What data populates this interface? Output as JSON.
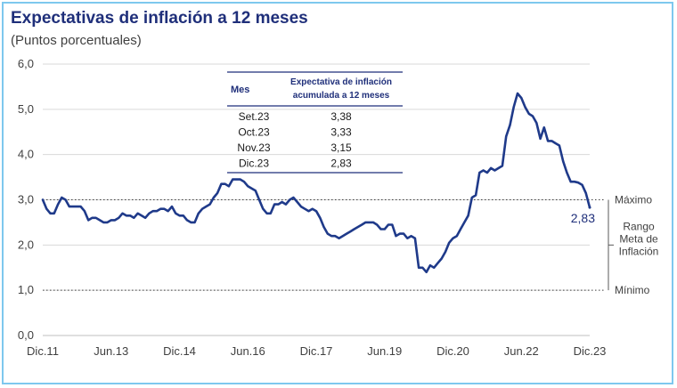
{
  "chart_data": {
    "type": "line",
    "title": "Expectativas de inflación a 12 meses",
    "subtitle": "(Puntos porcentuales)",
    "ylim": [
      0,
      6
    ],
    "yticks": [
      "0,0",
      "1,0",
      "2,0",
      "3,0",
      "4,0",
      "5,0",
      "6,0"
    ],
    "xticks": [
      "Dic.11",
      "Jun.13",
      "Dic.14",
      "Jun.16",
      "Dic.17",
      "Jun.19",
      "Dic.20",
      "Jun.22",
      "Dic.23"
    ],
    "grid": "horizontal",
    "series": [
      {
        "color": "#1f3a8a",
        "x": [
          "2011-12",
          "2012-01",
          "2012-02",
          "2012-03",
          "2012-04",
          "2012-05",
          "2012-06",
          "2012-07",
          "2012-08",
          "2012-09",
          "2012-10",
          "2012-11",
          "2012-12",
          "2013-01",
          "2013-02",
          "2013-03",
          "2013-04",
          "2013-05",
          "2013-06",
          "2013-07",
          "2013-08",
          "2013-09",
          "2013-10",
          "2013-11",
          "2013-12",
          "2014-01",
          "2014-02",
          "2014-03",
          "2014-04",
          "2014-05",
          "2014-06",
          "2014-07",
          "2014-08",
          "2014-09",
          "2014-10",
          "2014-11",
          "2014-12",
          "2015-01",
          "2015-02",
          "2015-03",
          "2015-04",
          "2015-05",
          "2015-06",
          "2015-07",
          "2015-08",
          "2015-09",
          "2015-10",
          "2015-11",
          "2015-12",
          "2016-01",
          "2016-02",
          "2016-03",
          "2016-04",
          "2016-05",
          "2016-06",
          "2016-07",
          "2016-08",
          "2016-09",
          "2016-10",
          "2016-11",
          "2016-12",
          "2017-01",
          "2017-02",
          "2017-03",
          "2017-04",
          "2017-05",
          "2017-06",
          "2017-07",
          "2017-08",
          "2017-09",
          "2017-10",
          "2017-11",
          "2017-12",
          "2018-01",
          "2018-02",
          "2018-03",
          "2018-04",
          "2018-05",
          "2018-06",
          "2018-07",
          "2018-08",
          "2018-09",
          "2018-10",
          "2018-11",
          "2018-12",
          "2019-01",
          "2019-02",
          "2019-03",
          "2019-04",
          "2019-05",
          "2019-06",
          "2019-07",
          "2019-08",
          "2019-09",
          "2019-10",
          "2019-11",
          "2019-12",
          "2020-01",
          "2020-02",
          "2020-03",
          "2020-04",
          "2020-05",
          "2020-06",
          "2020-07",
          "2020-08",
          "2020-09",
          "2020-10",
          "2020-11",
          "2020-12",
          "2021-01",
          "2021-02",
          "2021-03",
          "2021-04",
          "2021-05",
          "2021-06",
          "2021-07",
          "2021-08",
          "2021-09",
          "2021-10",
          "2021-11",
          "2021-12",
          "2022-01",
          "2022-02",
          "2022-03",
          "2022-04",
          "2022-05",
          "2022-06",
          "2022-07",
          "2022-08",
          "2022-09",
          "2022-10",
          "2022-11",
          "2022-12",
          "2023-01",
          "2023-02",
          "2023-03",
          "2023-04",
          "2023-05",
          "2023-06",
          "2023-07",
          "2023-08",
          "2023-09",
          "2023-10",
          "2023-11",
          "2023-12"
        ],
        "values": [
          3.0,
          2.8,
          2.7,
          2.7,
          2.9,
          3.05,
          3.0,
          2.85,
          2.85,
          2.85,
          2.85,
          2.75,
          2.55,
          2.6,
          2.6,
          2.55,
          2.5,
          2.5,
          2.55,
          2.55,
          2.6,
          2.7,
          2.65,
          2.65,
          2.6,
          2.7,
          2.65,
          2.6,
          2.7,
          2.75,
          2.75,
          2.8,
          2.8,
          2.75,
          2.85,
          2.7,
          2.65,
          2.65,
          2.55,
          2.5,
          2.5,
          2.7,
          2.8,
          2.85,
          2.9,
          3.05,
          3.15,
          3.35,
          3.35,
          3.3,
          3.45,
          3.45,
          3.45,
          3.4,
          3.3,
          3.25,
          3.2,
          3.0,
          2.8,
          2.7,
          2.7,
          2.9,
          2.9,
          2.95,
          2.9,
          3.0,
          3.05,
          2.95,
          2.85,
          2.8,
          2.75,
          2.8,
          2.75,
          2.6,
          2.4,
          2.25,
          2.2,
          2.2,
          2.15,
          2.2,
          2.25,
          2.3,
          2.35,
          2.4,
          2.45,
          2.5,
          2.5,
          2.5,
          2.45,
          2.35,
          2.35,
          2.45,
          2.45,
          2.2,
          2.25,
          2.25,
          2.15,
          2.2,
          2.15,
          1.5,
          1.5,
          1.4,
          1.55,
          1.5,
          1.6,
          1.7,
          1.85,
          2.05,
          2.15,
          2.2,
          2.35,
          2.5,
          2.65,
          3.05,
          3.1,
          3.6,
          3.65,
          3.6,
          3.7,
          3.65,
          3.7,
          3.75,
          4.4,
          4.65,
          5.05,
          5.35,
          5.25,
          5.05,
          4.9,
          4.85,
          4.7,
          4.35,
          4.6,
          4.3,
          4.3,
          4.25,
          4.2,
          3.85,
          3.6,
          3.4,
          3.4,
          3.38,
          3.33,
          3.15,
          2.83
        ]
      }
    ],
    "reference_lines": [
      {
        "label": "Máximo",
        "value": 3.0
      },
      {
        "label": "Mínimo",
        "value": 1.0
      }
    ],
    "range_label": [
      "Rango",
      "Meta de",
      "Inflación"
    ],
    "last_value_label": "2,83",
    "table": {
      "headers": [
        "Mes",
        "Expectativa de inflación",
        "acumulada a 12 meses"
      ],
      "rows": [
        [
          "Set.23",
          "3,38"
        ],
        [
          "Oct.23",
          "3,33"
        ],
        [
          "Nov.23",
          "3,15"
        ],
        [
          "Dic.23",
          "2,83"
        ]
      ]
    }
  }
}
